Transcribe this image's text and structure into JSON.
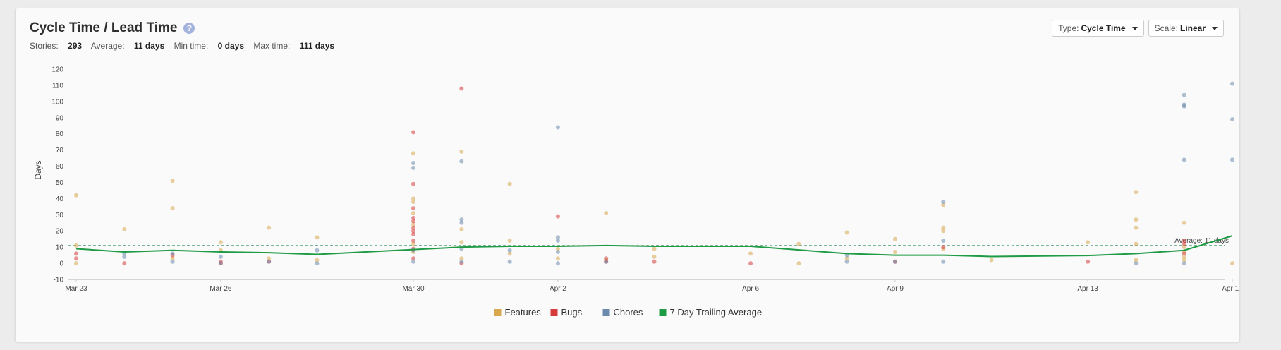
{
  "header": {
    "title": "Cycle Time / Lead Time",
    "help_icon": "question-circle-icon",
    "stats": {
      "stories_label": "Stories:",
      "stories_value": "293",
      "average_label": "Average:",
      "average_value": "11 days",
      "min_label": "Min time:",
      "min_value": "0 days",
      "max_label": "Max time:",
      "max_value": "111 days"
    },
    "type_select": {
      "label": "Type:",
      "value": "Cycle Time"
    },
    "scale_select": {
      "label": "Scale:",
      "value": "Linear"
    }
  },
  "colors": {
    "features": "#d9a84e",
    "bugs": "#d73c3c",
    "chores": "#6b8aad",
    "trailing": "#1f9a45",
    "average_line": "#2f8f5b",
    "grid": "#e8e8e8"
  },
  "chart_data": {
    "type": "scatter",
    "title": "",
    "xlabel": "",
    "ylabel": "Days",
    "ylim": [
      -10,
      120
    ],
    "yticks": [
      -10,
      0,
      10,
      20,
      30,
      40,
      50,
      60,
      70,
      80,
      90,
      100,
      110,
      120
    ],
    "xlim": [
      "Mar 23",
      "Apr 16"
    ],
    "x_ticks": [
      {
        "day": 0,
        "label": "Mar 23"
      },
      {
        "day": 3,
        "label": "Mar 26"
      },
      {
        "day": 7,
        "label": "Mar 30"
      },
      {
        "day": 10,
        "label": "Apr 2"
      },
      {
        "day": 14,
        "label": "Apr 6"
      },
      {
        "day": 17,
        "label": "Apr 9"
      },
      {
        "day": 21,
        "label": "Apr 13"
      },
      {
        "day": 24,
        "label": "Apr 16"
      }
    ],
    "grid": false,
    "legend_position": "bottom-center",
    "average": {
      "value": 11,
      "label": "Average: 11 days"
    },
    "legend": [
      {
        "name": "Features",
        "color_key": "features"
      },
      {
        "name": "Bugs",
        "color_key": "bugs"
      },
      {
        "name": "Chores",
        "color_key": "chores"
      },
      {
        "name": "7 Day Trailing Average",
        "color_key": "trailing"
      }
    ],
    "series": [
      {
        "name": "Features",
        "color_key": "features",
        "points": [
          [
            0,
            42
          ],
          [
            0,
            11
          ],
          [
            0,
            0
          ],
          [
            1,
            21
          ],
          [
            2,
            51
          ],
          [
            2,
            34
          ],
          [
            2,
            3
          ],
          [
            3,
            13
          ],
          [
            3,
            8
          ],
          [
            4,
            22
          ],
          [
            4,
            3
          ],
          [
            5,
            16
          ],
          [
            5,
            2
          ],
          [
            7,
            68
          ],
          [
            7,
            40
          ],
          [
            7,
            38
          ],
          [
            7,
            31
          ],
          [
            7,
            24
          ],
          [
            7,
            12
          ],
          [
            7,
            7
          ],
          [
            8,
            69
          ],
          [
            8,
            21
          ],
          [
            8,
            13
          ],
          [
            8,
            3
          ],
          [
            9,
            49
          ],
          [
            9,
            14
          ],
          [
            9,
            6
          ],
          [
            10,
            9
          ],
          [
            10,
            3
          ],
          [
            11,
            31
          ],
          [
            11,
            2
          ],
          [
            12,
            9
          ],
          [
            12,
            4
          ],
          [
            14,
            6
          ],
          [
            15,
            12
          ],
          [
            15,
            0
          ],
          [
            16,
            19
          ],
          [
            16,
            3
          ],
          [
            17,
            15
          ],
          [
            17,
            7
          ],
          [
            18,
            22
          ],
          [
            18,
            20
          ],
          [
            18,
            36
          ],
          [
            18,
            9
          ],
          [
            19,
            2
          ],
          [
            21,
            13
          ],
          [
            22,
            44
          ],
          [
            22,
            27
          ],
          [
            22,
            22
          ],
          [
            22,
            12
          ],
          [
            22,
            2
          ],
          [
            23,
            25
          ],
          [
            23,
            10
          ],
          [
            23,
            7
          ],
          [
            23,
            4
          ],
          [
            23,
            2
          ],
          [
            24,
            0
          ]
        ]
      },
      {
        "name": "Bugs",
        "color_key": "bugs",
        "points": [
          [
            0,
            6
          ],
          [
            0,
            3
          ],
          [
            1,
            0
          ],
          [
            2,
            5
          ],
          [
            3,
            1
          ],
          [
            3,
            0
          ],
          [
            4,
            1
          ],
          [
            7,
            81
          ],
          [
            7,
            49
          ],
          [
            7,
            34
          ],
          [
            7,
            28
          ],
          [
            7,
            26
          ],
          [
            7,
            22
          ],
          [
            7,
            20
          ],
          [
            7,
            18
          ],
          [
            7,
            14
          ],
          [
            7,
            9
          ],
          [
            7,
            3
          ],
          [
            8,
            108
          ],
          [
            8,
            0
          ],
          [
            10,
            29
          ],
          [
            11,
            3
          ],
          [
            11,
            1
          ],
          [
            12,
            1
          ],
          [
            14,
            0
          ],
          [
            17,
            1
          ],
          [
            18,
            10
          ],
          [
            21,
            1
          ],
          [
            23,
            14
          ],
          [
            23,
            12
          ],
          [
            23,
            6
          ]
        ]
      },
      {
        "name": "Chores",
        "color_key": "chores",
        "points": [
          [
            1,
            6
          ],
          [
            1,
            4
          ],
          [
            2,
            6
          ],
          [
            2,
            1
          ],
          [
            3,
            4
          ],
          [
            3,
            0
          ],
          [
            4,
            1
          ],
          [
            5,
            8
          ],
          [
            5,
            0
          ],
          [
            7,
            62
          ],
          [
            7,
            59
          ],
          [
            7,
            8
          ],
          [
            7,
            1
          ],
          [
            8,
            63
          ],
          [
            8,
            27
          ],
          [
            8,
            25
          ],
          [
            8,
            9
          ],
          [
            8,
            1
          ],
          [
            9,
            8
          ],
          [
            9,
            1
          ],
          [
            10,
            84
          ],
          [
            10,
            16
          ],
          [
            10,
            14
          ],
          [
            10,
            7
          ],
          [
            10,
            0
          ],
          [
            11,
            1
          ],
          [
            16,
            5
          ],
          [
            16,
            1
          ],
          [
            17,
            1
          ],
          [
            18,
            38
          ],
          [
            18,
            14
          ],
          [
            18,
            1
          ],
          [
            22,
            0
          ],
          [
            23,
            104
          ],
          [
            23,
            98
          ],
          [
            23,
            97
          ],
          [
            23,
            64
          ],
          [
            23,
            0
          ],
          [
            24,
            111
          ],
          [
            24,
            89
          ],
          [
            24,
            64
          ]
        ]
      },
      {
        "name": "7 Day Trailing Average",
        "color_key": "trailing",
        "points": [
          [
            0,
            9
          ],
          [
            1,
            7
          ],
          [
            2,
            8
          ],
          [
            3,
            7
          ],
          [
            4,
            6.5
          ],
          [
            5,
            5.5
          ],
          [
            7,
            8.5
          ],
          [
            8,
            10
          ],
          [
            9,
            10.5
          ],
          [
            10,
            10.5
          ],
          [
            11,
            11
          ],
          [
            12,
            10.5
          ],
          [
            14,
            10.5
          ],
          [
            16,
            6
          ],
          [
            17,
            5
          ],
          [
            18,
            5
          ],
          [
            19,
            4.2
          ],
          [
            21,
            4.8
          ],
          [
            22,
            6
          ],
          [
            23,
            8
          ],
          [
            24,
            17
          ]
        ]
      }
    ]
  }
}
